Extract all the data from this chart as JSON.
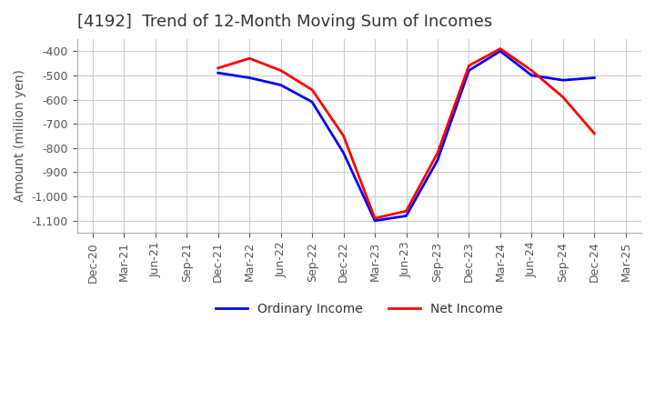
{
  "title": "[4192]  Trend of 12-Month Moving Sum of Incomes",
  "ylabel": "Amount (million yen)",
  "background_color": "#ffffff",
  "grid_color": "#cccccc",
  "title_fontsize": 13,
  "label_fontsize": 10,
  "tick_fontsize": 9,
  "ylim": [
    -1150,
    -350
  ],
  "yticks": [
    -400,
    -500,
    -600,
    -700,
    -800,
    -900,
    -1000,
    -1100
  ],
  "ordinary_income_color": "#0000ff",
  "net_income_color": "#ff0000",
  "x_labels": [
    "Dec-20",
    "Mar-21",
    "Jun-21",
    "Sep-21",
    "Dec-21",
    "Mar-22",
    "Jun-22",
    "Sep-22",
    "Dec-22",
    "Mar-23",
    "Jun-23",
    "Sep-23",
    "Dec-23",
    "Mar-24",
    "Jun-24",
    "Sep-24",
    "Dec-24",
    "Mar-25"
  ],
  "ordinary_income": [
    null,
    null,
    null,
    null,
    -490,
    -510,
    -540,
    -610,
    -820,
    -1100,
    -1080,
    -850,
    -480,
    -400,
    -500,
    -520,
    -510,
    null
  ],
  "net_income": [
    null,
    null,
    null,
    null,
    -470,
    -430,
    -480,
    -560,
    -750,
    -1090,
    -1060,
    -820,
    -460,
    -390,
    -480,
    -590,
    -740,
    null
  ]
}
